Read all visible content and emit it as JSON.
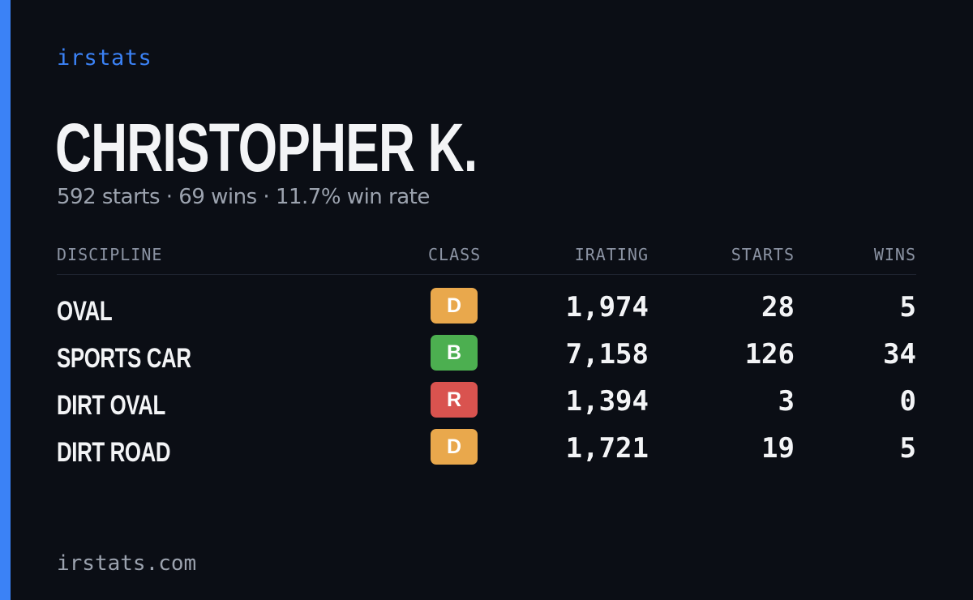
{
  "brand": "irstats",
  "driver": {
    "name": "CHRISTOPHER K.",
    "summary": "592 starts · 69 wins · 11.7% win rate"
  },
  "table": {
    "headers": {
      "discipline": "DISCIPLINE",
      "class": "CLASS",
      "irating": "IRATING",
      "starts": "STARTS",
      "wins": "WINS"
    },
    "rows": [
      {
        "discipline": "OVAL",
        "class": "D",
        "class_color": "#e9a84c",
        "irating": "1,974",
        "starts": "28",
        "wins": "5"
      },
      {
        "discipline": "SPORTS CAR",
        "class": "B",
        "class_color": "#4caf50",
        "irating": "7,158",
        "starts": "126",
        "wins": "34"
      },
      {
        "discipline": "DIRT OVAL",
        "class": "R",
        "class_color": "#d9534f",
        "irating": "1,394",
        "starts": "3",
        "wins": "0"
      },
      {
        "discipline": "DIRT ROAD",
        "class": "D",
        "class_color": "#e9a84c",
        "irating": "1,721",
        "starts": "19",
        "wins": "5"
      }
    ]
  },
  "footer": "irstats.com",
  "colors": {
    "accent": "#3b82f6",
    "background": "#0b0e15"
  }
}
